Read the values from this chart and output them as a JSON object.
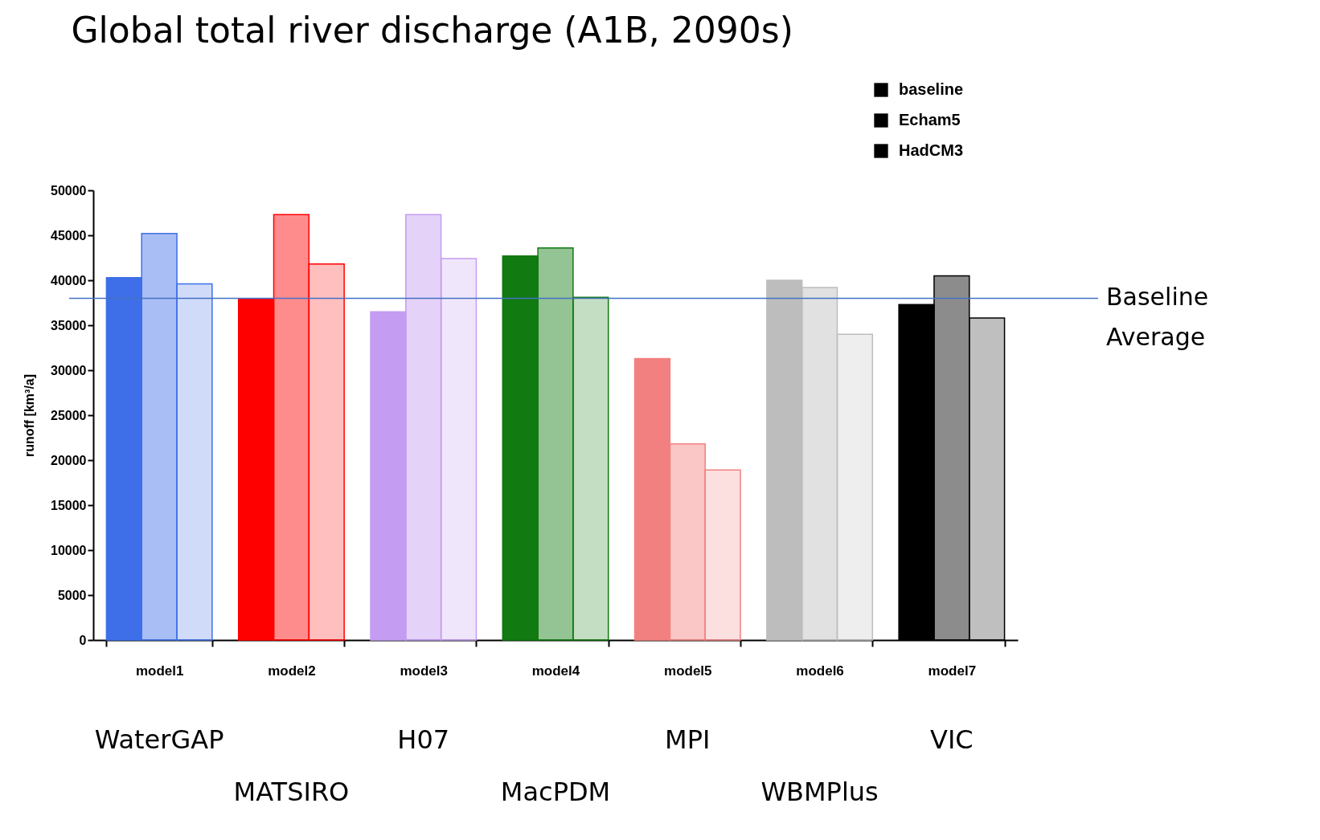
{
  "chart_data": {
    "type": "bar",
    "title": "Global total river discharge (A1B, 2090s)",
    "ylabel": "runoff [km³/a]",
    "categories": [
      "model1",
      "model2",
      "model3",
      "model4",
      "model5",
      "model6",
      "model7"
    ],
    "series": [
      {
        "name": "baseline",
        "color": "#000000",
        "colors": [
          "#3f6fe8",
          "#ff0000",
          "#c49cf2",
          "#117a11",
          "#f38080",
          "#bdbdbd",
          "#000000"
        ],
        "values": [
          40300,
          37900,
          36500,
          42700,
          31300,
          40000,
          37300
        ]
      },
      {
        "name": "Echam5",
        "color": "#000000",
        "colors": [
          "#3f6fe8",
          "#ff0000",
          "#c49cf2",
          "#117a11",
          "#f38080",
          "#bdbdbd",
          "#000000"
        ],
        "values": [
          45200,
          47300,
          47300,
          43600,
          21800,
          39200,
          40500
        ]
      },
      {
        "name": "HadCM3",
        "color": "#000000",
        "colors": [
          "#3f6fe8",
          "#ff0000",
          "#c49cf2",
          "#117a11",
          "#f38080",
          "#bdbdbd",
          "#000000"
        ],
        "values": [
          39600,
          41800,
          42400,
          38100,
          18900,
          34000,
          35800
        ]
      }
    ],
    "ylim": [
      0,
      50000
    ],
    "yticks": [
      0,
      5000,
      10000,
      15000,
      20000,
      25000,
      30000,
      35000,
      40000,
      45000,
      50000
    ],
    "legend": "top right",
    "ref_lines": [
      {
        "axis": "y",
        "value": 38000,
        "label": "Baseline Average",
        "color": "#4472c4"
      }
    ],
    "annotations": [
      "WaterGAP",
      "MATSIRO",
      "H07",
      "MacPDM",
      "MPI",
      "WBMPlus",
      "VIC"
    ]
  }
}
